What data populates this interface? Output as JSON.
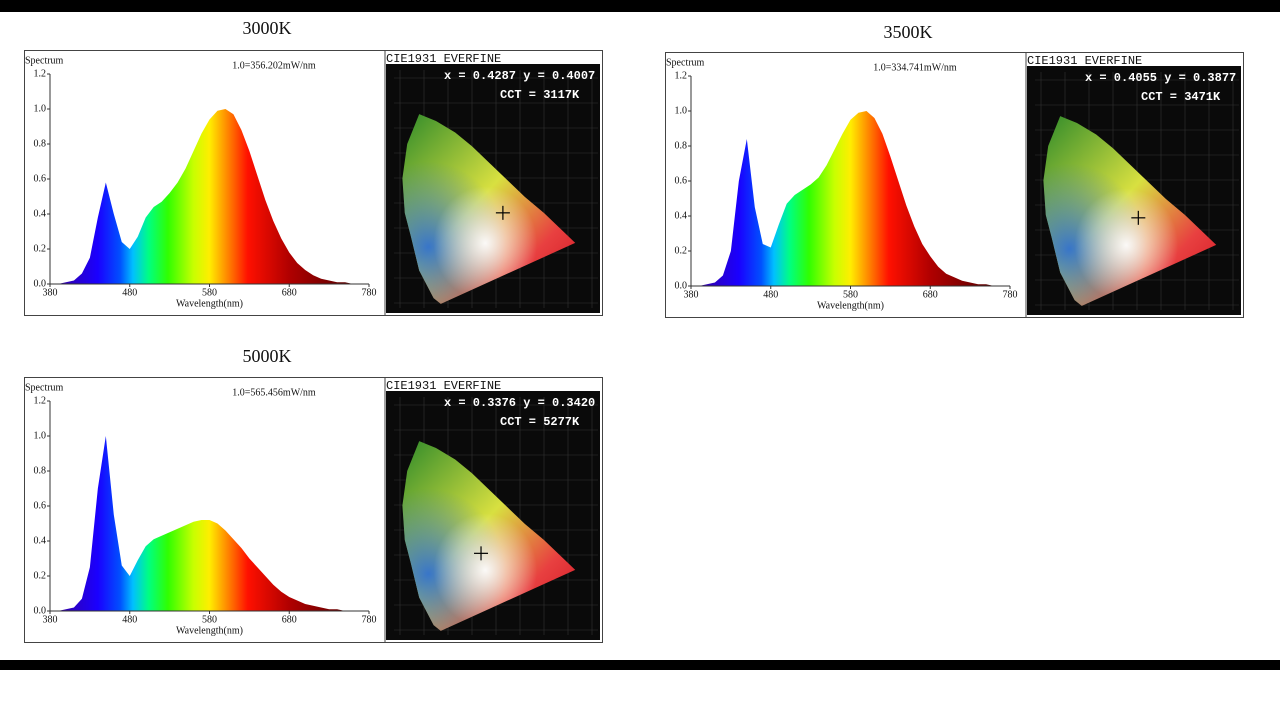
{
  "chart_data": [
    {
      "type": "area",
      "title": "3000K",
      "y_axis_label": "Spectrum",
      "x_axis_label": "Wavelength(nm)",
      "annotation": "1.0=356.202mW/nm",
      "x": [
        380,
        390,
        400,
        410,
        420,
        430,
        440,
        450,
        460,
        470,
        480,
        490,
        500,
        510,
        520,
        530,
        540,
        550,
        560,
        570,
        580,
        590,
        600,
        610,
        620,
        630,
        640,
        650,
        660,
        670,
        680,
        690,
        700,
        710,
        720,
        730,
        740,
        750,
        760,
        770,
        780
      ],
      "values": [
        0,
        0,
        0.01,
        0.02,
        0.06,
        0.15,
        0.38,
        0.58,
        0.4,
        0.24,
        0.2,
        0.27,
        0.38,
        0.44,
        0.47,
        0.52,
        0.58,
        0.66,
        0.76,
        0.86,
        0.94,
        0.99,
        1.0,
        0.97,
        0.88,
        0.76,
        0.62,
        0.48,
        0.36,
        0.26,
        0.18,
        0.12,
        0.08,
        0.05,
        0.03,
        0.02,
        0.01,
        0.01,
        0,
        0,
        0
      ],
      "xlim": [
        380,
        780
      ],
      "ylim": [
        0,
        1.2
      ],
      "xticks": [
        380,
        480,
        580,
        680,
        780
      ],
      "yticks": [
        {
          "value": 0,
          "label": "0.0"
        },
        0.2,
        0.4,
        0.6,
        0.8,
        {
          "value": 1,
          "label": "1.0"
        },
        1.2
      ],
      "cie": {
        "title": "CIE1931 EVERFINE",
        "label": "x = 0.4287 y = 0.4007",
        "cct": "CCT = 3117K",
        "x": 0.4287,
        "y": 0.4007
      }
    },
    {
      "type": "area",
      "title": "3500K",
      "y_axis_label": "Spectrum",
      "x_axis_label": "Wavelength(nm)",
      "annotation": "1.0=334.741mW/nm",
      "x": [
        380,
        390,
        400,
        410,
        420,
        430,
        440,
        450,
        460,
        470,
        480,
        490,
        500,
        510,
        520,
        530,
        540,
        550,
        560,
        570,
        580,
        590,
        600,
        610,
        620,
        630,
        640,
        650,
        660,
        670,
        680,
        690,
        700,
        710,
        720,
        730,
        740,
        750,
        760,
        770,
        780
      ],
      "values": [
        0,
        0,
        0.01,
        0.02,
        0.06,
        0.2,
        0.6,
        0.84,
        0.45,
        0.24,
        0.22,
        0.35,
        0.47,
        0.52,
        0.55,
        0.58,
        0.62,
        0.69,
        0.78,
        0.87,
        0.95,
        0.99,
        1.0,
        0.96,
        0.87,
        0.74,
        0.6,
        0.46,
        0.34,
        0.24,
        0.17,
        0.11,
        0.07,
        0.05,
        0.03,
        0.02,
        0.01,
        0.01,
        0,
        0,
        0
      ],
      "xlim": [
        380,
        780
      ],
      "ylim": [
        0,
        1.2
      ],
      "xticks": [
        380,
        480,
        580,
        680,
        780
      ],
      "yticks": [
        {
          "value": 0,
          "label": "0.0"
        },
        0.2,
        0.4,
        0.6,
        0.8,
        {
          "value": 1,
          "label": "1.0"
        },
        1.2
      ],
      "cie": {
        "title": "CIE1931 EVERFINE",
        "label": "x = 0.4055 y = 0.3877",
        "cct": "CCT = 3471K",
        "x": 0.4055,
        "y": 0.3877
      }
    },
    {
      "type": "area",
      "title": "5000K",
      "y_axis_label": "Spectrum",
      "x_axis_label": "Wavelength(nm)",
      "annotation": "1.0=565.456mW/nm",
      "x": [
        380,
        390,
        400,
        410,
        420,
        430,
        440,
        450,
        460,
        470,
        480,
        490,
        500,
        510,
        520,
        530,
        540,
        550,
        560,
        570,
        580,
        590,
        600,
        610,
        620,
        630,
        640,
        650,
        660,
        670,
        680,
        690,
        700,
        710,
        720,
        730,
        740,
        750,
        760,
        770,
        780
      ],
      "values": [
        0,
        0,
        0.01,
        0.02,
        0.07,
        0.25,
        0.7,
        1.0,
        0.55,
        0.26,
        0.2,
        0.29,
        0.37,
        0.41,
        0.43,
        0.45,
        0.47,
        0.49,
        0.51,
        0.52,
        0.52,
        0.5,
        0.46,
        0.41,
        0.36,
        0.3,
        0.25,
        0.2,
        0.15,
        0.11,
        0.08,
        0.06,
        0.04,
        0.03,
        0.02,
        0.01,
        0.01,
        0,
        0,
        0,
        0
      ],
      "xlim": [
        380,
        780
      ],
      "ylim": [
        0,
        1.2
      ],
      "xticks": [
        380,
        480,
        580,
        680,
        780
      ],
      "yticks": [
        {
          "value": 0,
          "label": "0.0"
        },
        0.2,
        0.4,
        0.6,
        0.8,
        {
          "value": 1,
          "label": "1.0"
        },
        1.2
      ],
      "cie": {
        "title": "CIE1931 EVERFINE",
        "label": "x = 0.3376 y = 0.3420",
        "cct": "CCT = 5277K",
        "x": 0.3376,
        "y": 0.342
      }
    }
  ]
}
